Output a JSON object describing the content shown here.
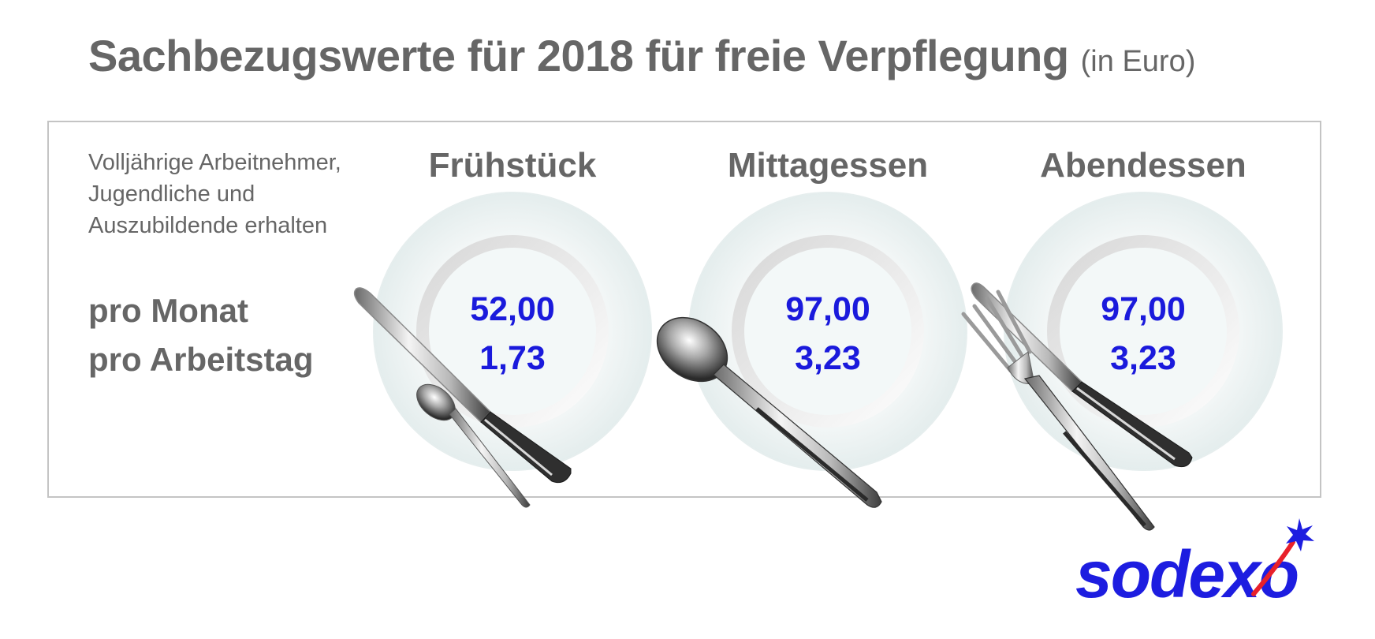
{
  "title": {
    "main": "Sachbezugswerte für 2018 für freie Verpflegung",
    "unit": "(in Euro)"
  },
  "intro": [
    "Volljährige Arbeitnehmer,",
    "Jugendliche und",
    "Auszubildende erhalten"
  ],
  "row_labels": {
    "per_month": "pro Monat",
    "per_workday": "pro Arbeitstag"
  },
  "meals": [
    {
      "name": "Frühstück",
      "per_month": "52,00",
      "per_workday": "1,73"
    },
    {
      "name": "Mittagessen",
      "per_month": "97,00",
      "per_workday": "3,23"
    },
    {
      "name": "Abendessen",
      "per_month": "97,00",
      "per_workday": "3,23"
    }
  ],
  "logo": {
    "text": "sodexo"
  },
  "colors": {
    "text_gray": "#666666",
    "value_blue": "#1a1adc",
    "logo_blue": "#1d1de0",
    "logo_red": "#e8202a",
    "frame": "#c4c4c4"
  },
  "icons": [
    "knife-icon",
    "teaspoon-icon",
    "spoon-icon",
    "fork-icon",
    "plate-icon",
    "star-icon"
  ]
}
